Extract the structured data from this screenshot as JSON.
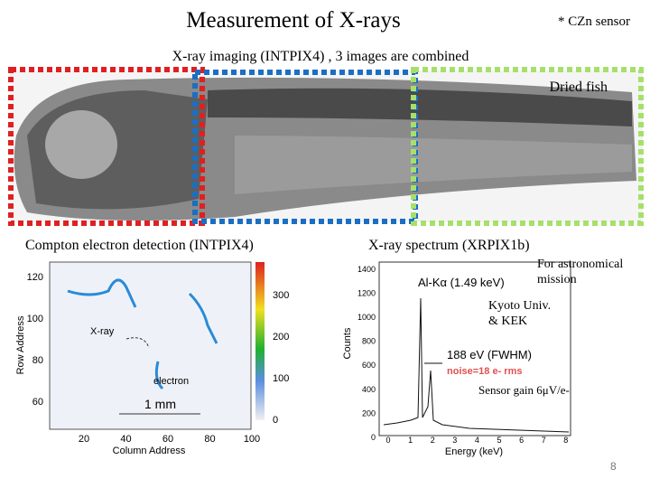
{
  "header": {
    "title": "Measurement of X-rays",
    "note": "* CZn sensor"
  },
  "imaging": {
    "caption": "X-ray imaging (INTPIX4) , 3 images are combined",
    "label": "Dried fish"
  },
  "compton": {
    "caption": "Compton electron detection (INTPIX4)",
    "y_label": "Row Address",
    "x_label": "Column Address",
    "yticks": [
      60,
      80,
      100,
      120
    ],
    "xticks": [
      20,
      40,
      60,
      80,
      100
    ],
    "colorbar_ticks": [
      0,
      100,
      200,
      300
    ],
    "annotations": [
      "X-ray",
      "electron",
      "1 mm"
    ]
  },
  "spectrum": {
    "caption": "X-ray spectrum (XRPIX1b)",
    "y_label": "Counts",
    "x_label": "Energy (keV)",
    "yticks": [
      0,
      200,
      400,
      600,
      800,
      1000,
      1200,
      1400
    ],
    "xticks": [
      0,
      1,
      2,
      3,
      4,
      5,
      6,
      7,
      8
    ],
    "peak_label": "Al-Kα (1.49 keV)",
    "fwhm_label": "188 eV (FWHM)",
    "noise_label": "noise=18 e- rms"
  },
  "notes": {
    "mission": "For astronomical mission",
    "institution": "Kyoto Univ. & KEK",
    "gain": "Sensor gain 6μV/e-"
  },
  "page_number": "8"
}
